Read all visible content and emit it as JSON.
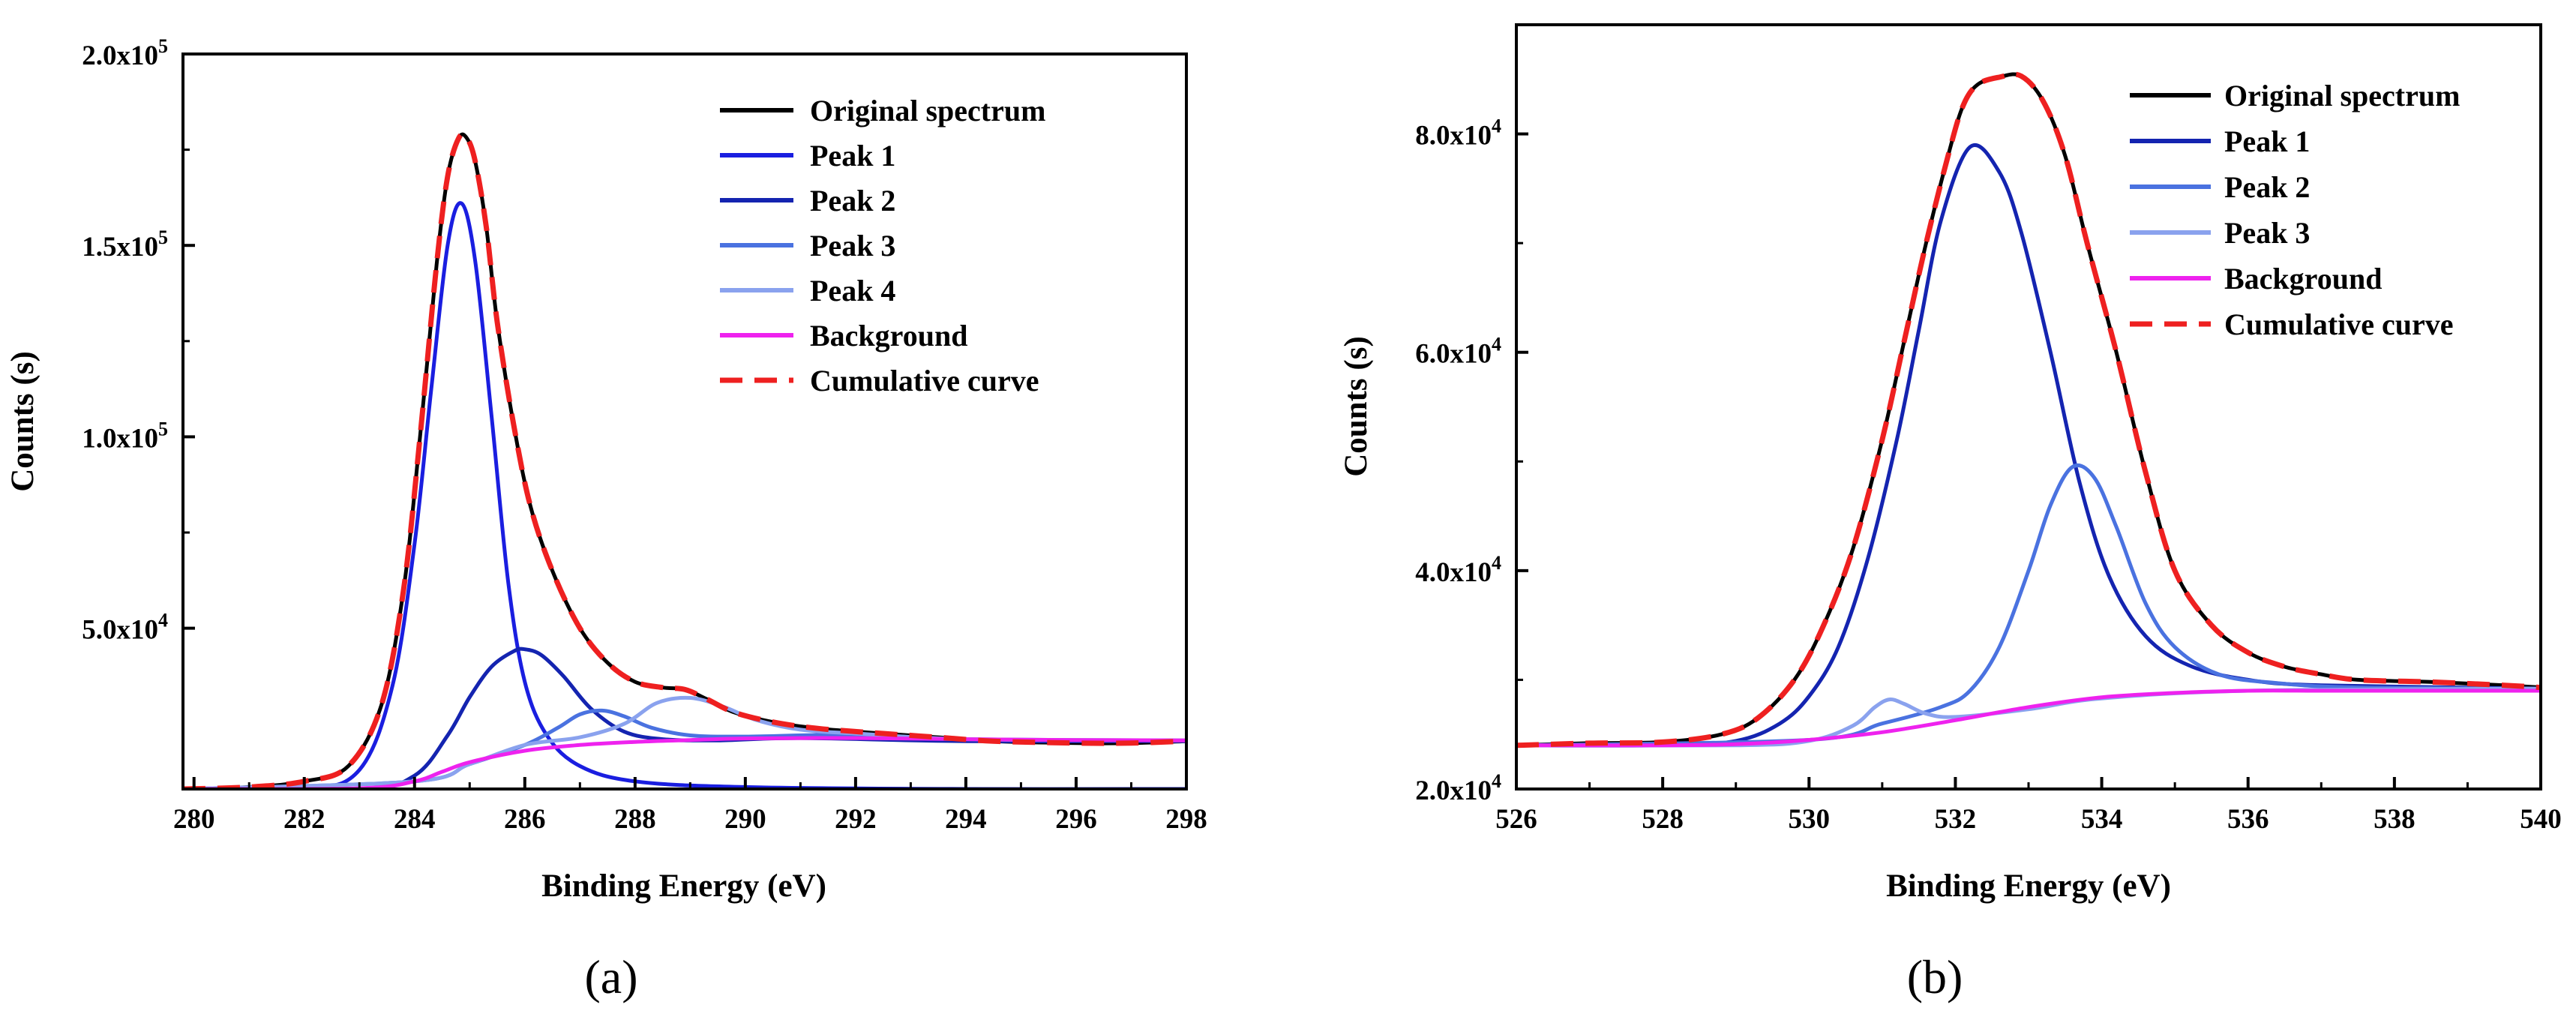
{
  "figure": {
    "panel_labels": [
      "(a)",
      "(b)"
    ]
  },
  "chart_data": [
    {
      "type": "line",
      "panel": "(a)",
      "title": "",
      "xlabel": "Binding Energy (eV)",
      "ylabel": "Counts (s)",
      "xlim": [
        279.8,
        298
      ],
      "ylim": [
        8000,
        200000
      ],
      "xticks": [
        280,
        282,
        284,
        286,
        288,
        290,
        292,
        294,
        296,
        298
      ],
      "xtick_labels": [
        "280",
        "282",
        "284",
        "286",
        "288",
        "290",
        "292",
        "294",
        "296",
        "298"
      ],
      "yticks": [
        {
          "value": 50000,
          "mantissa": "5.0x10",
          "exp": "4"
        },
        {
          "value": 100000,
          "mantissa": "1.0x10",
          "exp": "5"
        },
        {
          "value": 150000,
          "mantissa": "1.5x10",
          "exp": "5"
        },
        {
          "value": 200000,
          "mantissa": "2.0x10",
          "exp": "5"
        }
      ],
      "legend_position": "top-right",
      "series": [
        {
          "name": "Original spectrum",
          "color": "#000000",
          "style": "solid",
          "x": [
            279.8,
            281,
            282,
            282.8,
            283.4,
            283.8,
            284.1,
            284.4,
            284.6,
            284.8,
            284.95,
            285.1,
            285.3,
            285.5,
            285.8,
            286.1,
            286.5,
            287,
            287.5,
            288,
            288.5,
            288.9,
            289.3,
            289.8,
            290.5,
            291.2,
            292,
            292.5,
            293.5,
            294.5,
            296,
            297,
            298
          ],
          "y": [
            8000,
            8500,
            10000,
            14000,
            30000,
            60000,
            100000,
            145000,
            168000,
            178000,
            178000,
            172000,
            155000,
            130000,
            103000,
            82000,
            65000,
            50000,
            41000,
            36000,
            34500,
            34000,
            31500,
            28000,
            25500,
            24000,
            23000,
            22500,
            21500,
            20500,
            20000,
            20000,
            20500
          ]
        },
        {
          "name": "Peak 1",
          "color": "#1a1ee0",
          "style": "solid",
          "x": [
            279.8,
            282,
            283,
            283.6,
            284,
            284.3,
            284.6,
            284.85,
            285.1,
            285.4,
            285.7,
            286,
            286.4,
            287,
            288,
            290,
            294,
            298
          ],
          "y": [
            8000,
            8000,
            13000,
            35000,
            72000,
            112000,
            150000,
            161000,
            146000,
            105000,
            62000,
            36000,
            22000,
            14000,
            10000,
            8500,
            8000,
            8000
          ]
        },
        {
          "name": "Peak 2",
          "color": "#1424b0",
          "style": "solid",
          "x": [
            279.8,
            283,
            284,
            284.6,
            285,
            285.4,
            285.8,
            286,
            286.3,
            286.7,
            287.2,
            287.8,
            288.5,
            289.5,
            291,
            294,
            298
          ],
          "y": [
            8000,
            8000,
            11500,
            22000,
            32000,
            40000,
            44000,
            44500,
            43000,
            37500,
            29000,
            23000,
            21000,
            20700,
            21300,
            20500,
            20500
          ]
        },
        {
          "name": "Peak 3",
          "color": "#4a72e0",
          "style": "solid",
          "x": [
            279.8,
            284,
            285,
            286,
            286.6,
            287,
            287.4,
            287.8,
            288.3,
            289,
            290,
            292,
            294,
            298
          ],
          "y": [
            8000,
            10000,
            14500,
            19500,
            24000,
            27500,
            28500,
            27000,
            24000,
            22000,
            21700,
            22200,
            21000,
            20700
          ]
        },
        {
          "name": "Peak 4",
          "color": "#8aa2ee",
          "style": "solid",
          "x": [
            279.8,
            284,
            285,
            286,
            287,
            287.8,
            288.4,
            289,
            289.6,
            290.2,
            291,
            292,
            294,
            298
          ],
          "y": [
            8000,
            10000,
            14500,
            19500,
            21500,
            25000,
            30500,
            31800,
            29500,
            26000,
            23500,
            22500,
            21000,
            20700
          ]
        },
        {
          "name": "Background",
          "color": "#ee22ee",
          "style": "solid",
          "x": [
            279.8,
            283,
            284,
            284.5,
            285,
            286,
            287,
            288,
            289,
            290,
            292,
            294,
            296,
            298
          ],
          "y": [
            8000,
            8200,
            10000,
            12500,
            15000,
            18000,
            19500,
            20300,
            20800,
            21200,
            21300,
            21000,
            20800,
            20700
          ]
        },
        {
          "name": "Cumulative curve",
          "color": "#ee2020",
          "style": "dashed",
          "x": [
            279.8,
            281,
            282,
            282.8,
            283.4,
            283.8,
            284.1,
            284.4,
            284.6,
            284.8,
            284.95,
            285.1,
            285.3,
            285.5,
            285.8,
            286.1,
            286.5,
            287,
            287.5,
            288,
            288.5,
            288.9,
            289.3,
            289.8,
            290.5,
            291.2,
            292,
            292.5,
            293.5,
            294.5,
            296,
            297,
            298
          ],
          "y": [
            8000,
            8500,
            10000,
            14000,
            30000,
            60000,
            100000,
            145000,
            168000,
            178000,
            178000,
            172000,
            155000,
            130000,
            103000,
            82000,
            65000,
            50000,
            41000,
            36000,
            34500,
            34000,
            31500,
            28000,
            25500,
            24000,
            23000,
            22500,
            21500,
            20500,
            20000,
            20000,
            20500
          ]
        }
      ]
    },
    {
      "type": "line",
      "panel": "(b)",
      "title": "",
      "xlabel": "Binding Energy (eV)",
      "ylabel": "Counts (s)",
      "xlim": [
        526,
        540
      ],
      "ylim": [
        20000,
        90000
      ],
      "xticks": [
        526,
        528,
        530,
        532,
        534,
        536,
        538,
        540
      ],
      "xtick_labels": [
        "526",
        "528",
        "530",
        "532",
        "534",
        "536",
        "538",
        "540"
      ],
      "yticks": [
        {
          "value": 20000,
          "mantissa": "2.0x10",
          "exp": "4"
        },
        {
          "value": 40000,
          "mantissa": "4.0x10",
          "exp": "4"
        },
        {
          "value": 60000,
          "mantissa": "6.0x10",
          "exp": "4"
        },
        {
          "value": 80000,
          "mantissa": "8.0x10",
          "exp": "4"
        }
      ],
      "legend_position": "top-right",
      "series": [
        {
          "name": "Original spectrum",
          "color": "#000000",
          "style": "solid",
          "x": [
            526,
            527,
            528,
            528.8,
            529.3,
            529.8,
            530.2,
            530.6,
            531,
            531.3,
            531.6,
            531.9,
            532.1,
            532.3,
            532.6,
            532.9,
            533.2,
            533.5,
            533.8,
            534.2,
            534.6,
            535,
            535.5,
            536,
            536.5,
            537,
            537.5,
            538.5,
            539.5,
            540
          ],
          "y": [
            24000,
            24200,
            24300,
            25000,
            26500,
            30000,
            35000,
            42000,
            52000,
            61000,
            70000,
            78000,
            82500,
            84500,
            85200,
            85300,
            83000,
            78000,
            70000,
            60000,
            49000,
            40000,
            35000,
            32500,
            31200,
            30500,
            30000,
            29800,
            29500,
            29300
          ]
        },
        {
          "name": "Peak 1",
          "color": "#1424b0",
          "style": "solid",
          "x": [
            526,
            528,
            529,
            529.6,
            530,
            530.4,
            530.8,
            531.2,
            531.5,
            531.8,
            532.2,
            532.6,
            532.9,
            533.3,
            533.7,
            534.1,
            534.6,
            535.2,
            536,
            537,
            540
          ],
          "y": [
            24000,
            24000,
            24400,
            26000,
            28500,
            33000,
            41000,
            52000,
            62000,
            72000,
            78800,
            76500,
            71000,
            60000,
            48000,
            39500,
            34000,
            31300,
            30000,
            29500,
            29200
          ]
        },
        {
          "name": "Peak 2",
          "color": "#4a72e0",
          "style": "solid",
          "x": [
            526,
            530,
            531,
            531.8,
            532.2,
            532.6,
            533,
            533.3,
            533.6,
            533.9,
            534.2,
            534.6,
            535,
            535.6,
            536.4,
            537.5,
            540
          ],
          "y": [
            24000,
            24500,
            26000,
            27500,
            29000,
            33000,
            40000,
            46000,
            49500,
            48500,
            44000,
            37000,
            33000,
            30500,
            29700,
            29300,
            29200
          ]
        },
        {
          "name": "Peak 3",
          "color": "#8aa2ee",
          "style": "solid",
          "x": [
            526,
            529,
            530,
            530.6,
            530.9,
            531.1,
            531.3,
            531.6,
            532,
            533,
            534,
            536,
            540
          ],
          "y": [
            24000,
            24000,
            24400,
            25800,
            27500,
            28200,
            27800,
            26900,
            26600,
            27300,
            28300,
            29000,
            29200
          ]
        },
        {
          "name": "Background",
          "color": "#ee22ee",
          "style": "solid",
          "x": [
            526,
            528,
            529,
            530,
            531,
            532,
            533,
            534,
            535,
            536,
            537,
            538,
            540
          ],
          "y": [
            24000,
            24000,
            24100,
            24500,
            25200,
            26300,
            27500,
            28400,
            28800,
            29000,
            29000,
            29000,
            29000
          ]
        },
        {
          "name": "Cumulative curve",
          "color": "#ee2020",
          "style": "dashed",
          "x": [
            526,
            527,
            528,
            528.8,
            529.3,
            529.8,
            530.2,
            530.6,
            531,
            531.3,
            531.6,
            531.9,
            532.1,
            532.3,
            532.6,
            532.9,
            533.2,
            533.5,
            533.8,
            534.2,
            534.6,
            535,
            535.5,
            536,
            536.5,
            537,
            537.5,
            538.5,
            539.5,
            540
          ],
          "y": [
            24000,
            24200,
            24300,
            25000,
            26500,
            30000,
            35000,
            42000,
            52000,
            61000,
            70000,
            78000,
            82500,
            84500,
            85200,
            85300,
            83000,
            78000,
            70000,
            60000,
            49000,
            40000,
            35000,
            32500,
            31200,
            30500,
            30000,
            29800,
            29500,
            29300
          ]
        }
      ]
    }
  ]
}
